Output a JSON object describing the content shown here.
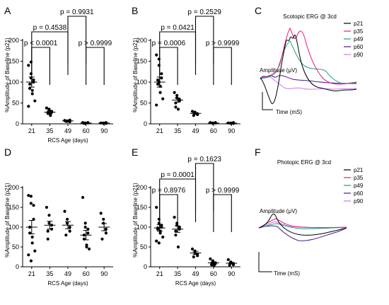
{
  "panels": {
    "A": "A",
    "B": "B",
    "C": "C",
    "D": "D",
    "E": "E",
    "F": "F"
  },
  "colors": {
    "p21": "#000000",
    "p35": "#e8177a",
    "p49": "#1a9c83",
    "p60": "#4b1a8c",
    "p90": "#c97be8"
  },
  "chart_data": [
    {
      "id": "A",
      "type": "scatter",
      "ylabel": "%Amplitude of Baseline (p21)",
      "xlabel": "RCS Age (days)",
      "categories": [
        "21",
        "35",
        "49",
        "60",
        "90"
      ],
      "yticks": [
        0,
        50,
        100,
        150,
        200
      ],
      "ylim": [
        0,
        200
      ],
      "series": [
        {
          "points": [
            [
              21,
              140
            ],
            [
              21,
              120
            ],
            [
              21,
              110
            ],
            [
              21,
              105
            ],
            [
              21,
              100
            ],
            [
              21,
              95
            ],
            [
              21,
              85
            ],
            [
              21,
              80
            ],
            [
              21,
              72
            ],
            [
              21,
              55
            ],
            [
              21,
              42
            ],
            [
              21,
              148
            ]
          ],
          "mean": 100,
          "sem": 12
        },
        {
          "points": [
            [
              35,
              38
            ],
            [
              35,
              35
            ],
            [
              35,
              33
            ],
            [
              35,
              30
            ],
            [
              35,
              28
            ],
            [
              35,
              27
            ],
            [
              35,
              25
            ],
            [
              35,
              22
            ],
            [
              35,
              20
            ]
          ],
          "mean": 28,
          "sem": 3
        },
        {
          "points": [
            [
              49,
              8
            ],
            [
              49,
              7
            ],
            [
              49,
              6
            ],
            [
              49,
              5
            ],
            [
              49,
              9
            ],
            [
              49,
              6
            ]
          ],
          "mean": 7,
          "sem": 1
        },
        {
          "points": [
            [
              60,
              3
            ],
            [
              60,
              2
            ],
            [
              60,
              1
            ],
            [
              60,
              2
            ],
            [
              60,
              3
            ],
            [
              60,
              1
            ]
          ],
          "mean": 2,
          "sem": 0.5
        },
        {
          "points": [
            [
              90,
              2
            ],
            [
              90,
              1
            ],
            [
              90,
              2
            ],
            [
              90,
              1
            ],
            [
              90,
              3
            ]
          ],
          "mean": 2,
          "sem": 0.5
        }
      ],
      "annotations": [
        {
          "text": "p < 0.0001",
          "from": "21",
          "to": "35",
          "level": 1
        },
        {
          "text": "p = 0.4538",
          "from": "21",
          "to": "49",
          "level": 2
        },
        {
          "text": "p = 0.9931",
          "from": "49",
          "to": "60",
          "level": 3
        },
        {
          "text": "p > 0.9999",
          "from": "60",
          "to": "90",
          "level": 1
        }
      ]
    },
    {
      "id": "B",
      "type": "scatter",
      "ylabel": "%Amplitude of Baseline (p21)",
      "xlabel": "",
      "categories": [
        "21",
        "35",
        "49",
        "60",
        "90"
      ],
      "yticks": [
        0,
        50,
        100,
        150,
        200
      ],
      "ylim": [
        0,
        200
      ],
      "series": [
        {
          "points": [
            [
              21,
              165
            ],
            [
              21,
              155
            ],
            [
              21,
              140
            ],
            [
              21,
              120
            ],
            [
              21,
              110
            ],
            [
              21,
              105
            ],
            [
              21,
              95
            ],
            [
              21,
              90
            ],
            [
              21,
              75
            ],
            [
              21,
              60
            ],
            [
              21,
              45
            ],
            [
              21,
              100
            ]
          ],
          "mean": 100,
          "sem": 12
        },
        {
          "points": [
            [
              35,
              75
            ],
            [
              35,
              68
            ],
            [
              35,
              62
            ],
            [
              35,
              58
            ],
            [
              35,
              55
            ],
            [
              35,
              50
            ],
            [
              35,
              40
            ],
            [
              35,
              35
            ]
          ],
          "mean": 57,
          "sem": 5
        },
        {
          "points": [
            [
              49,
              30
            ],
            [
              49,
              28
            ],
            [
              49,
              25
            ],
            [
              49,
              24
            ],
            [
              49,
              22
            ],
            [
              49,
              20
            ]
          ],
          "mean": 25,
          "sem": 2
        },
        {
          "points": [
            [
              60,
              3
            ],
            [
              60,
              2
            ],
            [
              60,
              1
            ],
            [
              60,
              2
            ],
            [
              60,
              3
            ]
          ],
          "mean": 2,
          "sem": 0.5
        },
        {
          "points": [
            [
              90,
              2
            ],
            [
              90,
              1
            ],
            [
              90,
              2
            ],
            [
              90,
              3
            ],
            [
              90,
              1
            ]
          ],
          "mean": 2,
          "sem": 0.5
        }
      ],
      "annotations": [
        {
          "text": "p = 0.0006",
          "from": "21",
          "to": "35",
          "level": 1
        },
        {
          "text": "p = 0.0421",
          "from": "21",
          "to": "49",
          "level": 2
        },
        {
          "text": "p = 0.2529",
          "from": "49",
          "to": "60",
          "level": 3
        },
        {
          "text": "p > 0.9999",
          "from": "60",
          "to": "90",
          "level": 1
        }
      ]
    },
    {
      "id": "D",
      "type": "scatter",
      "ylabel": "%Amplitude of Baseline (p21)",
      "xlabel": "RCS Age (days)",
      "categories": [
        "21",
        "35",
        "49",
        "60",
        "90"
      ],
      "yticks": [
        0,
        50,
        100,
        150,
        200
      ],
      "ylim": [
        0,
        200
      ],
      "series": [
        {
          "points": [
            [
              21,
              180
            ],
            [
              21,
              178
            ],
            [
              21,
              160
            ],
            [
              21,
              155
            ],
            [
              21,
              120
            ],
            [
              21,
              100
            ],
            [
              21,
              85
            ],
            [
              21,
              75
            ],
            [
              21,
              60
            ],
            [
              21,
              40
            ],
            [
              21,
              30
            ],
            [
              21,
              15
            ]
          ],
          "mean": 100,
          "sem": 17
        },
        {
          "points": [
            [
              35,
              150
            ],
            [
              35,
              130
            ],
            [
              35,
              110
            ],
            [
              35,
              105
            ],
            [
              35,
              95
            ],
            [
              35,
              90
            ],
            [
              35,
              70
            ]
          ],
          "mean": 105,
          "sem": 10
        },
        {
          "points": [
            [
              49,
              140
            ],
            [
              49,
              120
            ],
            [
              49,
              110
            ],
            [
              49,
              100
            ],
            [
              49,
              90
            ],
            [
              49,
              80
            ]
          ],
          "mean": 105,
          "sem": 9
        },
        {
          "points": [
            [
              60,
              175
            ],
            [
              60,
              110
            ],
            [
              60,
              100
            ],
            [
              60,
              95
            ],
            [
              60,
              85
            ],
            [
              60,
              80
            ],
            [
              60,
              70
            ],
            [
              60,
              55
            ],
            [
              60,
              50
            ],
            [
              60,
              45
            ]
          ],
          "mean": 80,
          "sem": 12
        },
        {
          "points": [
            [
              90,
              135
            ],
            [
              90,
              120
            ],
            [
              90,
              110
            ],
            [
              90,
              95
            ],
            [
              90,
              85
            ],
            [
              90,
              70
            ]
          ],
          "mean": 100,
          "sem": 9
        }
      ],
      "annotations": []
    },
    {
      "id": "E",
      "type": "scatter",
      "ylabel": "%Amplitude of Baseline (p21)",
      "xlabel": "RCS Age (days)",
      "categories": [
        "21",
        "35",
        "49",
        "60",
        "90"
      ],
      "yticks": [
        0,
        50,
        100,
        150,
        200
      ],
      "ylim": [
        0,
        200
      ],
      "series": [
        {
          "points": [
            [
              21,
              150
            ],
            [
              21,
              120
            ],
            [
              21,
              110
            ],
            [
              21,
              105
            ],
            [
              21,
              100
            ],
            [
              21,
              98
            ],
            [
              21,
              95
            ],
            [
              21,
              90
            ],
            [
              21,
              85
            ],
            [
              21,
              75
            ],
            [
              21,
              65
            ],
            [
              21,
              60
            ]
          ],
          "mean": 98,
          "sem": 8
        },
        {
          "points": [
            [
              35,
              125
            ],
            [
              35,
              110
            ],
            [
              35,
              105
            ],
            [
              35,
              100
            ],
            [
              35,
              95
            ],
            [
              35,
              90
            ],
            [
              35,
              80
            ],
            [
              35,
              50
            ]
          ],
          "mean": 95,
          "sem": 8
        },
        {
          "points": [
            [
              49,
              45
            ],
            [
              49,
              40
            ],
            [
              49,
              35
            ],
            [
              49,
              32
            ],
            [
              49,
              28
            ],
            [
              49,
              25
            ]
          ],
          "mean": 35,
          "sem": 4
        },
        {
          "points": [
            [
              60,
              20
            ],
            [
              60,
              15
            ],
            [
              60,
              12
            ],
            [
              60,
              10
            ],
            [
              60,
              8
            ],
            [
              60,
              6
            ],
            [
              60,
              5
            ],
            [
              60,
              4
            ]
          ],
          "mean": 10,
          "sem": 2
        },
        {
          "points": [
            [
              90,
              18
            ],
            [
              90,
              12
            ],
            [
              90,
              10
            ],
            [
              90,
              8
            ],
            [
              90,
              5
            ],
            [
              90,
              4
            ]
          ],
          "mean": 9,
          "sem": 2
        }
      ],
      "annotations": [
        {
          "text": "p = 0.8976",
          "from": "21",
          "to": "35",
          "level": 1
        },
        {
          "text": "p = 0.0001",
          "from": "21",
          "to": "49",
          "level": 2
        },
        {
          "text": "p = 0.1623",
          "from": "49",
          "to": "60",
          "level": 3
        },
        {
          "text": "p > 0.9999",
          "from": "60",
          "to": "90",
          "level": 1
        }
      ]
    },
    {
      "id": "C",
      "type": "line",
      "title": "Scotopic ERG @ 3cd",
      "ylabel": "Amplitude (μV)",
      "xlabel": "Time (mS)",
      "legend": [
        "p21",
        "p35",
        "p49",
        "p60",
        "p90"
      ]
    },
    {
      "id": "F",
      "type": "line",
      "title": "Photopic ERG @ 3cd",
      "ylabel": "Amplitude (μV)",
      "xlabel": "Time (mS)",
      "legend": [
        "p21",
        "p35",
        "p49",
        "p60",
        "p90"
      ]
    }
  ]
}
